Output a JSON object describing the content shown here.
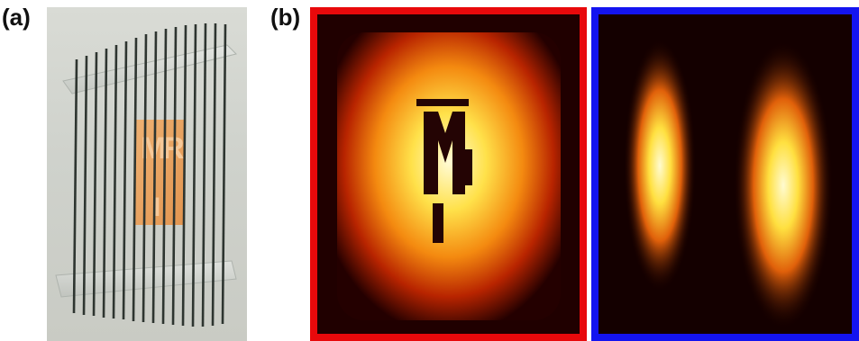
{
  "figure": {
    "panel_a": {
      "label": "(a)"
    },
    "panel_b": {
      "label": "(b)"
    },
    "phantom_letters": [
      "M",
      "R",
      "I"
    ]
  },
  "colors": {
    "frame_left": "#e8090b",
    "frame_right": "#1414f0"
  }
}
